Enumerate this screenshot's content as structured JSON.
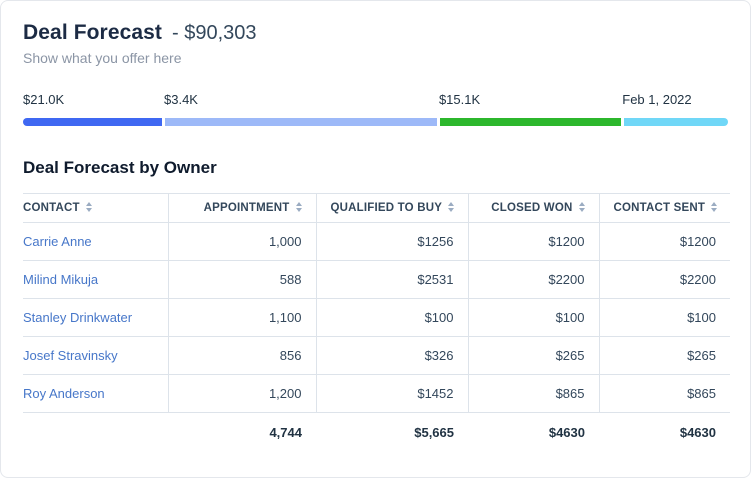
{
  "header": {
    "title": "Deal Forecast",
    "amount": "- $90,303",
    "subtitle": "Show what you offer here"
  },
  "progress": {
    "labels": [
      "$21.0K",
      "$3.4K",
      "$15.1K",
      "Feb 1, 2022"
    ],
    "segments": [
      {
        "label": "$21.0K",
        "color": "#3f68f2",
        "width_pct": 20
      },
      {
        "label": "$3.4K",
        "color": "#9db9f8",
        "width_pct": 39
      },
      {
        "label": "$15.1K",
        "color": "#2cb72c",
        "width_pct": 26
      },
      {
        "label": "Feb 1, 2022",
        "color": "#70d7f7",
        "width_pct": 15
      }
    ]
  },
  "section": {
    "title": "Deal Forecast by Owner"
  },
  "table": {
    "columns": [
      "CONTACT",
      "APPOINTMENT",
      "QUALIFIED TO BUY",
      "CLOSED WON",
      "CONTACT SENT"
    ],
    "rows": [
      {
        "contact": "Carrie Anne",
        "appointment": "1,000",
        "qualified_to_buy": "$1256",
        "closed_won": "$1200",
        "contact_sent": "$1200"
      },
      {
        "contact": "Milind Mikuja",
        "appointment": "588",
        "qualified_to_buy": "$2531",
        "closed_won": "$2200",
        "contact_sent": "$2200"
      },
      {
        "contact": "Stanley Drinkwater",
        "appointment": "1,100",
        "qualified_to_buy": "$100",
        "closed_won": "$100",
        "contact_sent": "$100"
      },
      {
        "contact": "Josef Stravinsky",
        "appointment": "856",
        "qualified_to_buy": "$326",
        "closed_won": "$265",
        "contact_sent": "$265"
      },
      {
        "contact": "Roy Anderson",
        "appointment": "1,200",
        "qualified_to_buy": "$1452",
        "closed_won": "$865",
        "contact_sent": "$865"
      }
    ],
    "totals": {
      "appointment": "4,744",
      "qualified_to_buy": "$5,665",
      "closed_won": "$4630",
      "contact_sent": "$4630"
    }
  },
  "colors": {
    "link_blue": "#4777c9",
    "segment_1": "#3f68f2",
    "segment_2": "#9db9f8",
    "segment_3": "#2cb72c",
    "segment_4": "#70d7f7",
    "border": "#dde3ea"
  }
}
